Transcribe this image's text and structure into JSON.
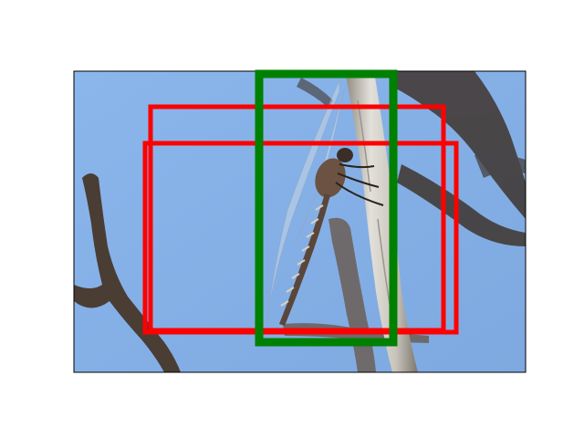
{
  "scene": {
    "subject": "dragonfly",
    "sky_color": "#86b1e7",
    "branch_color": "#5a4a3f",
    "trunk_color": "#c9c6bf"
  },
  "overlays": {
    "boxes": [
      {
        "label": "",
        "color": "#ff0000"
      },
      {
        "label": "",
        "color": "#ff0000"
      },
      {
        "label": "",
        "color": "#008000"
      }
    ]
  }
}
